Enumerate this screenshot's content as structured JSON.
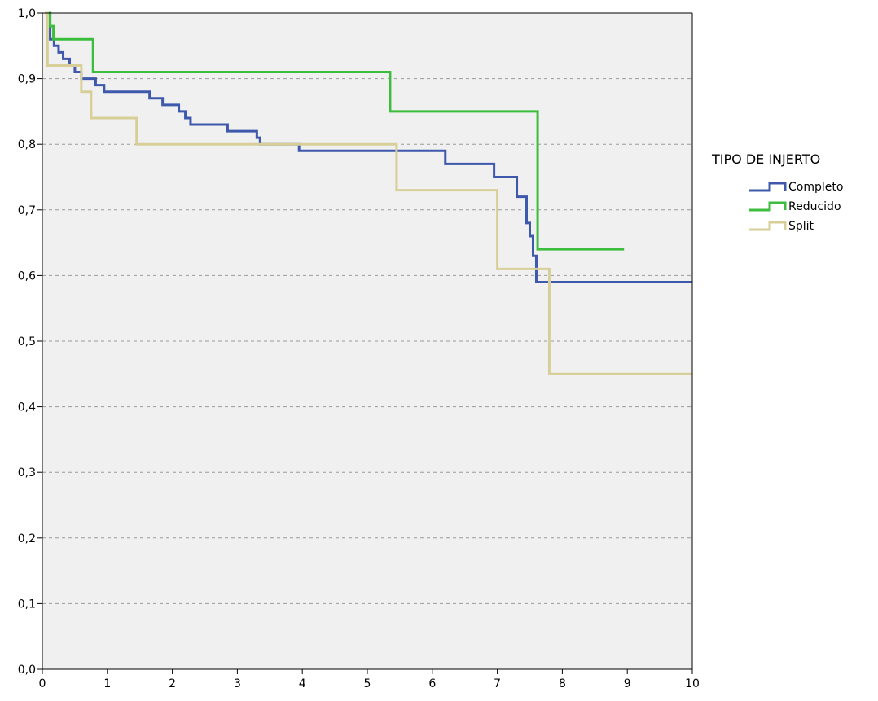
{
  "chart_data": {
    "type": "line",
    "step": true,
    "xlim": [
      0,
      10
    ],
    "ylim": [
      0.0,
      1.0
    ],
    "x_ticks": [
      0,
      1,
      2,
      3,
      4,
      5,
      6,
      7,
      8,
      9,
      10
    ],
    "x_tick_labels": [
      "0",
      "1",
      "2",
      "3",
      "4",
      "5",
      "6",
      "7",
      "8",
      "9",
      "10"
    ],
    "y_ticks": [
      0.0,
      0.1,
      0.2,
      0.3,
      0.4,
      0.5,
      0.6,
      0.7,
      0.8,
      0.9,
      1.0
    ],
    "y_tick_labels": [
      "0,0",
      "0,1",
      "0,2",
      "0,3",
      "0,4",
      "0,5",
      "0,6",
      "0,7",
      "0,8",
      "0,9",
      "1,0"
    ],
    "grid": "horizontal-dashed",
    "background_color": "#f0f0f0",
    "legend_title": "TIPO DE INJERTO",
    "legend_position": "right",
    "series": [
      {
        "name": "Completo",
        "color": "#3e58ac",
        "points": [
          [
            0.08,
            1.0
          ],
          [
            0.12,
            0.96
          ],
          [
            0.18,
            0.95
          ],
          [
            0.25,
            0.94
          ],
          [
            0.32,
            0.93
          ],
          [
            0.42,
            0.92
          ],
          [
            0.5,
            0.91
          ],
          [
            0.6,
            0.9
          ],
          [
            0.75,
            0.9
          ],
          [
            0.82,
            0.89
          ],
          [
            0.95,
            0.88
          ],
          [
            1.65,
            0.87
          ],
          [
            1.85,
            0.86
          ],
          [
            2.1,
            0.85
          ],
          [
            2.2,
            0.84
          ],
          [
            2.28,
            0.83
          ],
          [
            2.85,
            0.82
          ],
          [
            3.3,
            0.81
          ],
          [
            3.35,
            0.8
          ],
          [
            3.95,
            0.79
          ],
          [
            6.2,
            0.77
          ],
          [
            6.95,
            0.75
          ],
          [
            7.3,
            0.72
          ],
          [
            7.45,
            0.68
          ],
          [
            7.5,
            0.66
          ],
          [
            7.55,
            0.63
          ],
          [
            7.6,
            0.59
          ],
          [
            10.0,
            0.59
          ]
        ]
      },
      {
        "name": "Reducido",
        "color": "#3dbd3d",
        "points": [
          [
            0.08,
            1.0
          ],
          [
            0.12,
            0.98
          ],
          [
            0.17,
            0.96
          ],
          [
            0.78,
            0.91
          ],
          [
            5.35,
            0.85
          ],
          [
            7.62,
            0.64
          ],
          [
            8.95,
            0.64
          ]
        ]
      },
      {
        "name": "Split",
        "color": "#d8cf98",
        "points": [
          [
            0.04,
            1.0
          ],
          [
            0.08,
            0.92
          ],
          [
            0.6,
            0.88
          ],
          [
            0.75,
            0.84
          ],
          [
            1.45,
            0.8
          ],
          [
            5.45,
            0.73
          ],
          [
            7.0,
            0.61
          ],
          [
            7.8,
            0.45
          ],
          [
            10.0,
            0.45
          ]
        ]
      }
    ]
  }
}
